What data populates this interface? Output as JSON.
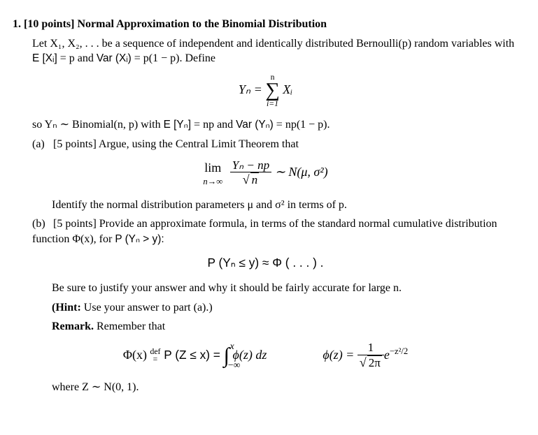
{
  "problem": {
    "number": "1.",
    "points": "[10 points]",
    "title": "Normal Approximation to the Binomial Distribution",
    "intro1": "Let X₁, X₂, . . . be a sequence of independent and identically distributed Bernoulli(p) random variables with ",
    "intro2": " = p and ",
    "intro3": " = p(1 − p). Define",
    "expect": "E [Xᵢ]",
    "var": "Var (Xᵢ)",
    "def_sum_lhs": "Yₙ =",
    "def_sum_top": "n",
    "def_sum_bot": "i=1",
    "def_sum_body": "Xᵢ",
    "so_line1": "so Yₙ ∼ Binomial(n, p) with ",
    "so_E": "E [Yₙ]",
    "so_E_eq": " = np and ",
    "so_V": "Var (Yₙ)",
    "so_V_eq": " = np(1 − p).",
    "partA": {
      "label": "(a)",
      "points": "[5 points]",
      "text": "Argue, using the Central Limit Theorem that",
      "lim_top": "lim",
      "lim_bot": "n→∞",
      "frac_num": "Yₙ − np",
      "frac_den_radic": "√",
      "frac_den_body": "n",
      "rhs": " ∼ N(μ, σ²)",
      "identify": "Identify the normal distribution parameters μ and σ² in terms of p."
    },
    "partB": {
      "label": "(b)",
      "points": "[5 points]",
      "text": "Provide an approximate formula, in terms of the standard normal cumulative distribution function Φ(x), for ",
      "prob": "P (Yₙ > y):",
      "approx_lhs": "P (Yₙ ≤ y) ≈ Φ ( . . . ) .",
      "justify": "Be sure to justify your answer and why it should be fairly accurate for large n.",
      "hint_label": "(Hint:",
      "hint_text": " Use your answer to part (a).)",
      "remark_label": "Remark.",
      "remark_text": " Remember that",
      "phi_def_l": "Φ(x) ",
      "def_sym": "def",
      "phi_def_m": " P (Z ≤ x) = ",
      "int_ub": "x",
      "int_lb": "−∞",
      "int_body": " ϕ(z) dz",
      "phi_small_l": "ϕ(z) = ",
      "phi_frac_num": "1",
      "phi_frac_den_rad": "√",
      "phi_frac_den_body": "2π",
      "phi_exp": "e",
      "phi_exp_sup": "−z²/2",
      "where": "where Z ∼ N(0, 1)."
    }
  }
}
